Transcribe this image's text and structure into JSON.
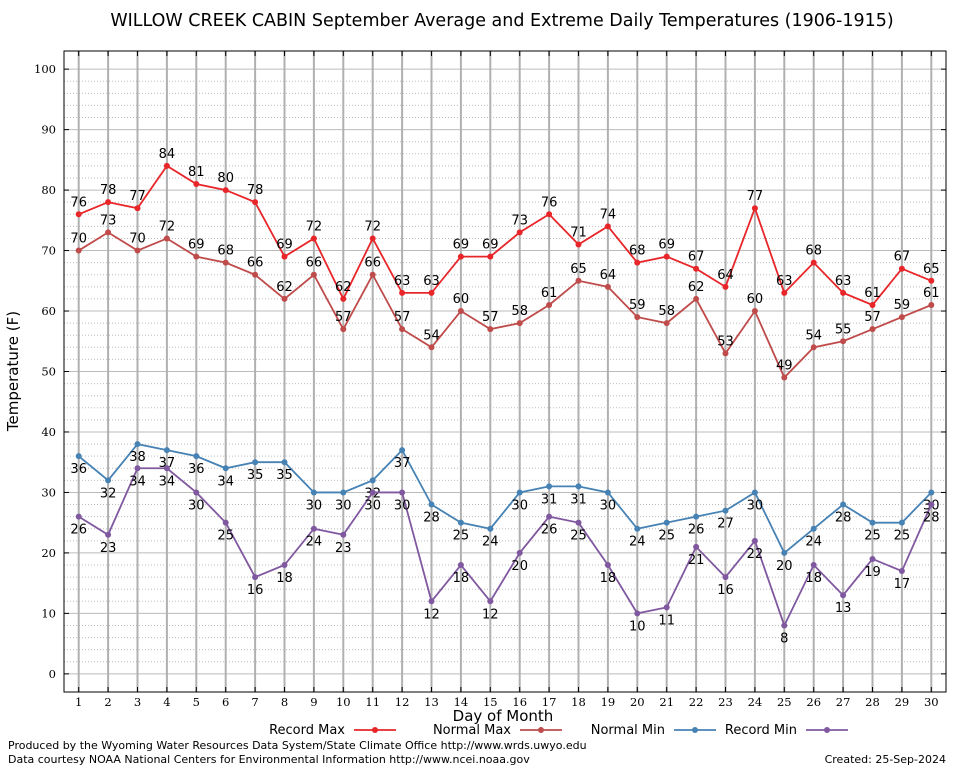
{
  "chart_data": {
    "type": "line",
    "title": "WILLOW CREEK CABIN September Average and Extreme Daily Temperatures (1906-1915)",
    "xlabel": "Day of Month",
    "ylabel": "Temperature (F)",
    "x": [
      1,
      2,
      3,
      4,
      5,
      6,
      7,
      8,
      9,
      10,
      11,
      12,
      13,
      14,
      15,
      16,
      17,
      18,
      19,
      20,
      21,
      22,
      23,
      24,
      25,
      26,
      27,
      28,
      29,
      30
    ],
    "xlim": [
      0.5,
      30.5
    ],
    "ylim": [
      -3,
      103
    ],
    "yticks": [
      0,
      10,
      20,
      30,
      40,
      50,
      60,
      70,
      80,
      90,
      100
    ],
    "grid": true,
    "legend_position": "bottom",
    "series": [
      {
        "name": "Record Max",
        "color": "#e8262a",
        "label_position": "above",
        "values": [
          76,
          78,
          77,
          84,
          81,
          80,
          78,
          69,
          72,
          62,
          72,
          63,
          63,
          69,
          69,
          73,
          76,
          71,
          74,
          68,
          69,
          67,
          64,
          77,
          63,
          68,
          63,
          61,
          67,
          65
        ]
      },
      {
        "name": "Normal Max",
        "color": "#bf4b4b",
        "label_position": "above",
        "values": [
          70,
          73,
          70,
          72,
          69,
          68,
          66,
          62,
          66,
          57,
          66,
          57,
          54,
          60,
          57,
          58,
          61,
          65,
          64,
          59,
          58,
          62,
          53,
          60,
          49,
          54,
          55,
          57,
          59,
          61
        ]
      },
      {
        "name": "Normal Min",
        "color": "#4682b4",
        "label_position": "below",
        "values": [
          36,
          32,
          38,
          37,
          36,
          34,
          35,
          35,
          30,
          30,
          32,
          37,
          28,
          25,
          24,
          30,
          31,
          31,
          30,
          24,
          25,
          26,
          27,
          30,
          20,
          24,
          28,
          25,
          25,
          30
        ]
      },
      {
        "name": "Record Min",
        "color": "#8058a0",
        "label_position": "below",
        "values": [
          26,
          23,
          34,
          34,
          30,
          25,
          16,
          18,
          24,
          23,
          30,
          30,
          12,
          18,
          12,
          20,
          26,
          25,
          18,
          10,
          11,
          21,
          16,
          22,
          8,
          18,
          13,
          19,
          17,
          28
        ]
      }
    ]
  },
  "footer": {
    "produced_by": "Produced by the Wyoming Water Resources Data System/State Climate Office http://www.wrds.uwyo.edu",
    "data_courtesy": "Data courtesy NOAA National Centers for Environmental Information http://www.ncei.noaa.gov",
    "created": "Created:  25-Sep-2024"
  }
}
